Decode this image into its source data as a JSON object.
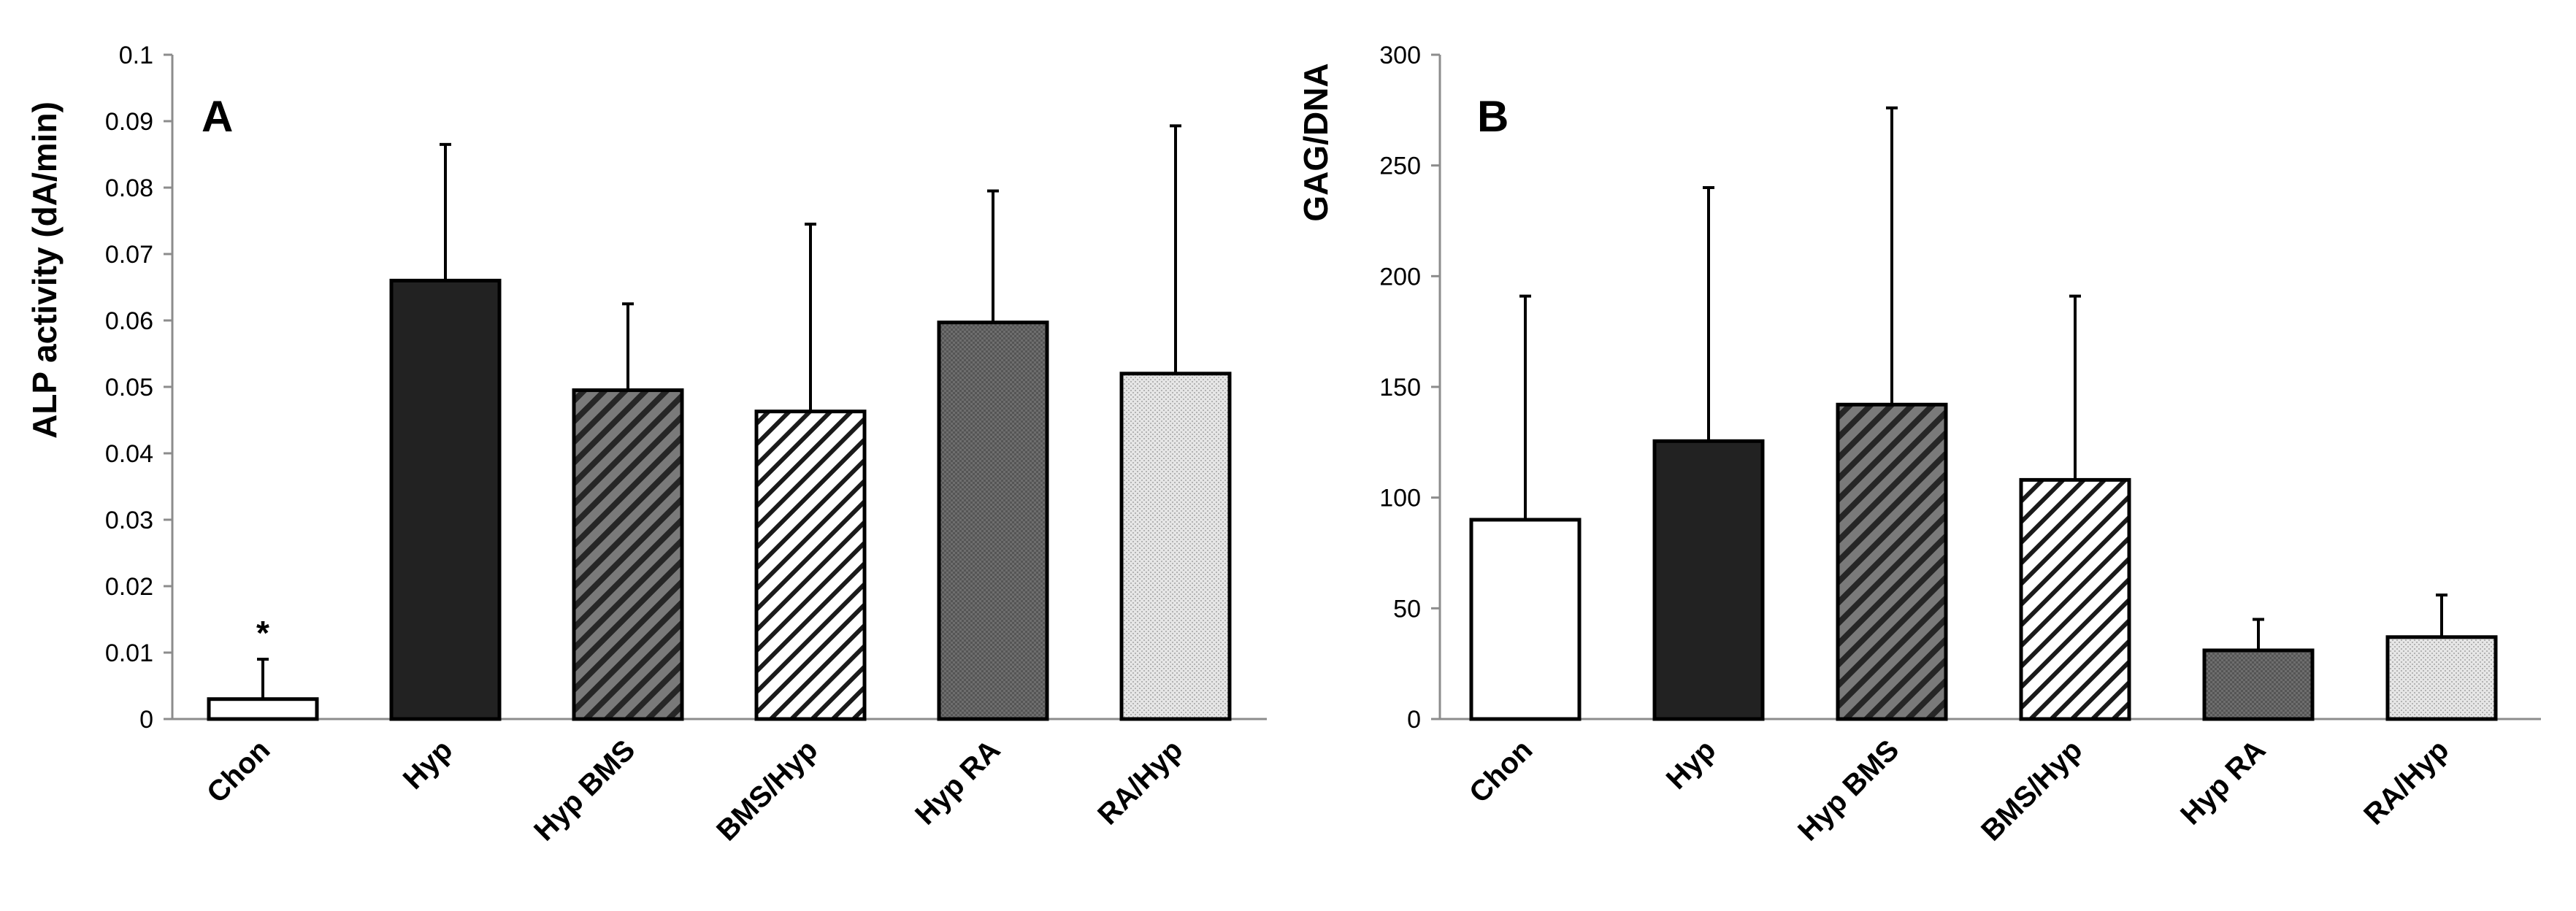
{
  "chart_data": [
    {
      "type": "bar",
      "panel_label": "A",
      "title": "",
      "xlabel": "",
      "ylabel": "ALP activity (dA/min)",
      "ylim": [
        0,
        0.1
      ],
      "yticks": [
        "0",
        "0.01",
        "0.02",
        "0.03",
        "0.04",
        "0.05",
        "0.06",
        "0.07",
        "0.08",
        "0.09",
        "0.1"
      ],
      "categories": [
        "Chon",
        "Hyp",
        "Hyp BMS",
        "BMS/Hyp",
        "Hyp RA",
        "RA/Hyp"
      ],
      "values": [
        0.003,
        0.066,
        0.0495,
        0.0463,
        0.0597,
        0.052
      ],
      "error_upper": [
        0.009,
        0.0865,
        0.0625,
        0.0745,
        0.0795,
        0.0893
      ],
      "fills": [
        "white",
        "solid-dark",
        "dense-hatch",
        "light-hatch",
        "crosshatch-gray",
        "dotted-light"
      ],
      "annotations": [
        {
          "category": "Chon",
          "text": "*"
        }
      ],
      "grid": false
    },
    {
      "type": "bar",
      "panel_label": "B",
      "title": "",
      "xlabel": "",
      "ylabel": "GAG/DNA",
      "ylim": [
        0,
        300
      ],
      "yticks": [
        "0",
        "50",
        "100",
        "150",
        "200",
        "250",
        "300"
      ],
      "categories": [
        "Chon",
        "Hyp",
        "Hyp BMS",
        "BMS/Hyp",
        "Hyp RA",
        "RA/Hyp"
      ],
      "values": [
        90,
        125.5,
        142,
        108,
        31,
        37
      ],
      "error_upper": [
        191,
        240,
        276,
        191,
        45,
        56
      ],
      "fills": [
        "white",
        "solid-dark",
        "dense-hatch",
        "light-hatch",
        "crosshatch-gray",
        "dotted-light"
      ],
      "annotations": [],
      "grid": false
    }
  ]
}
